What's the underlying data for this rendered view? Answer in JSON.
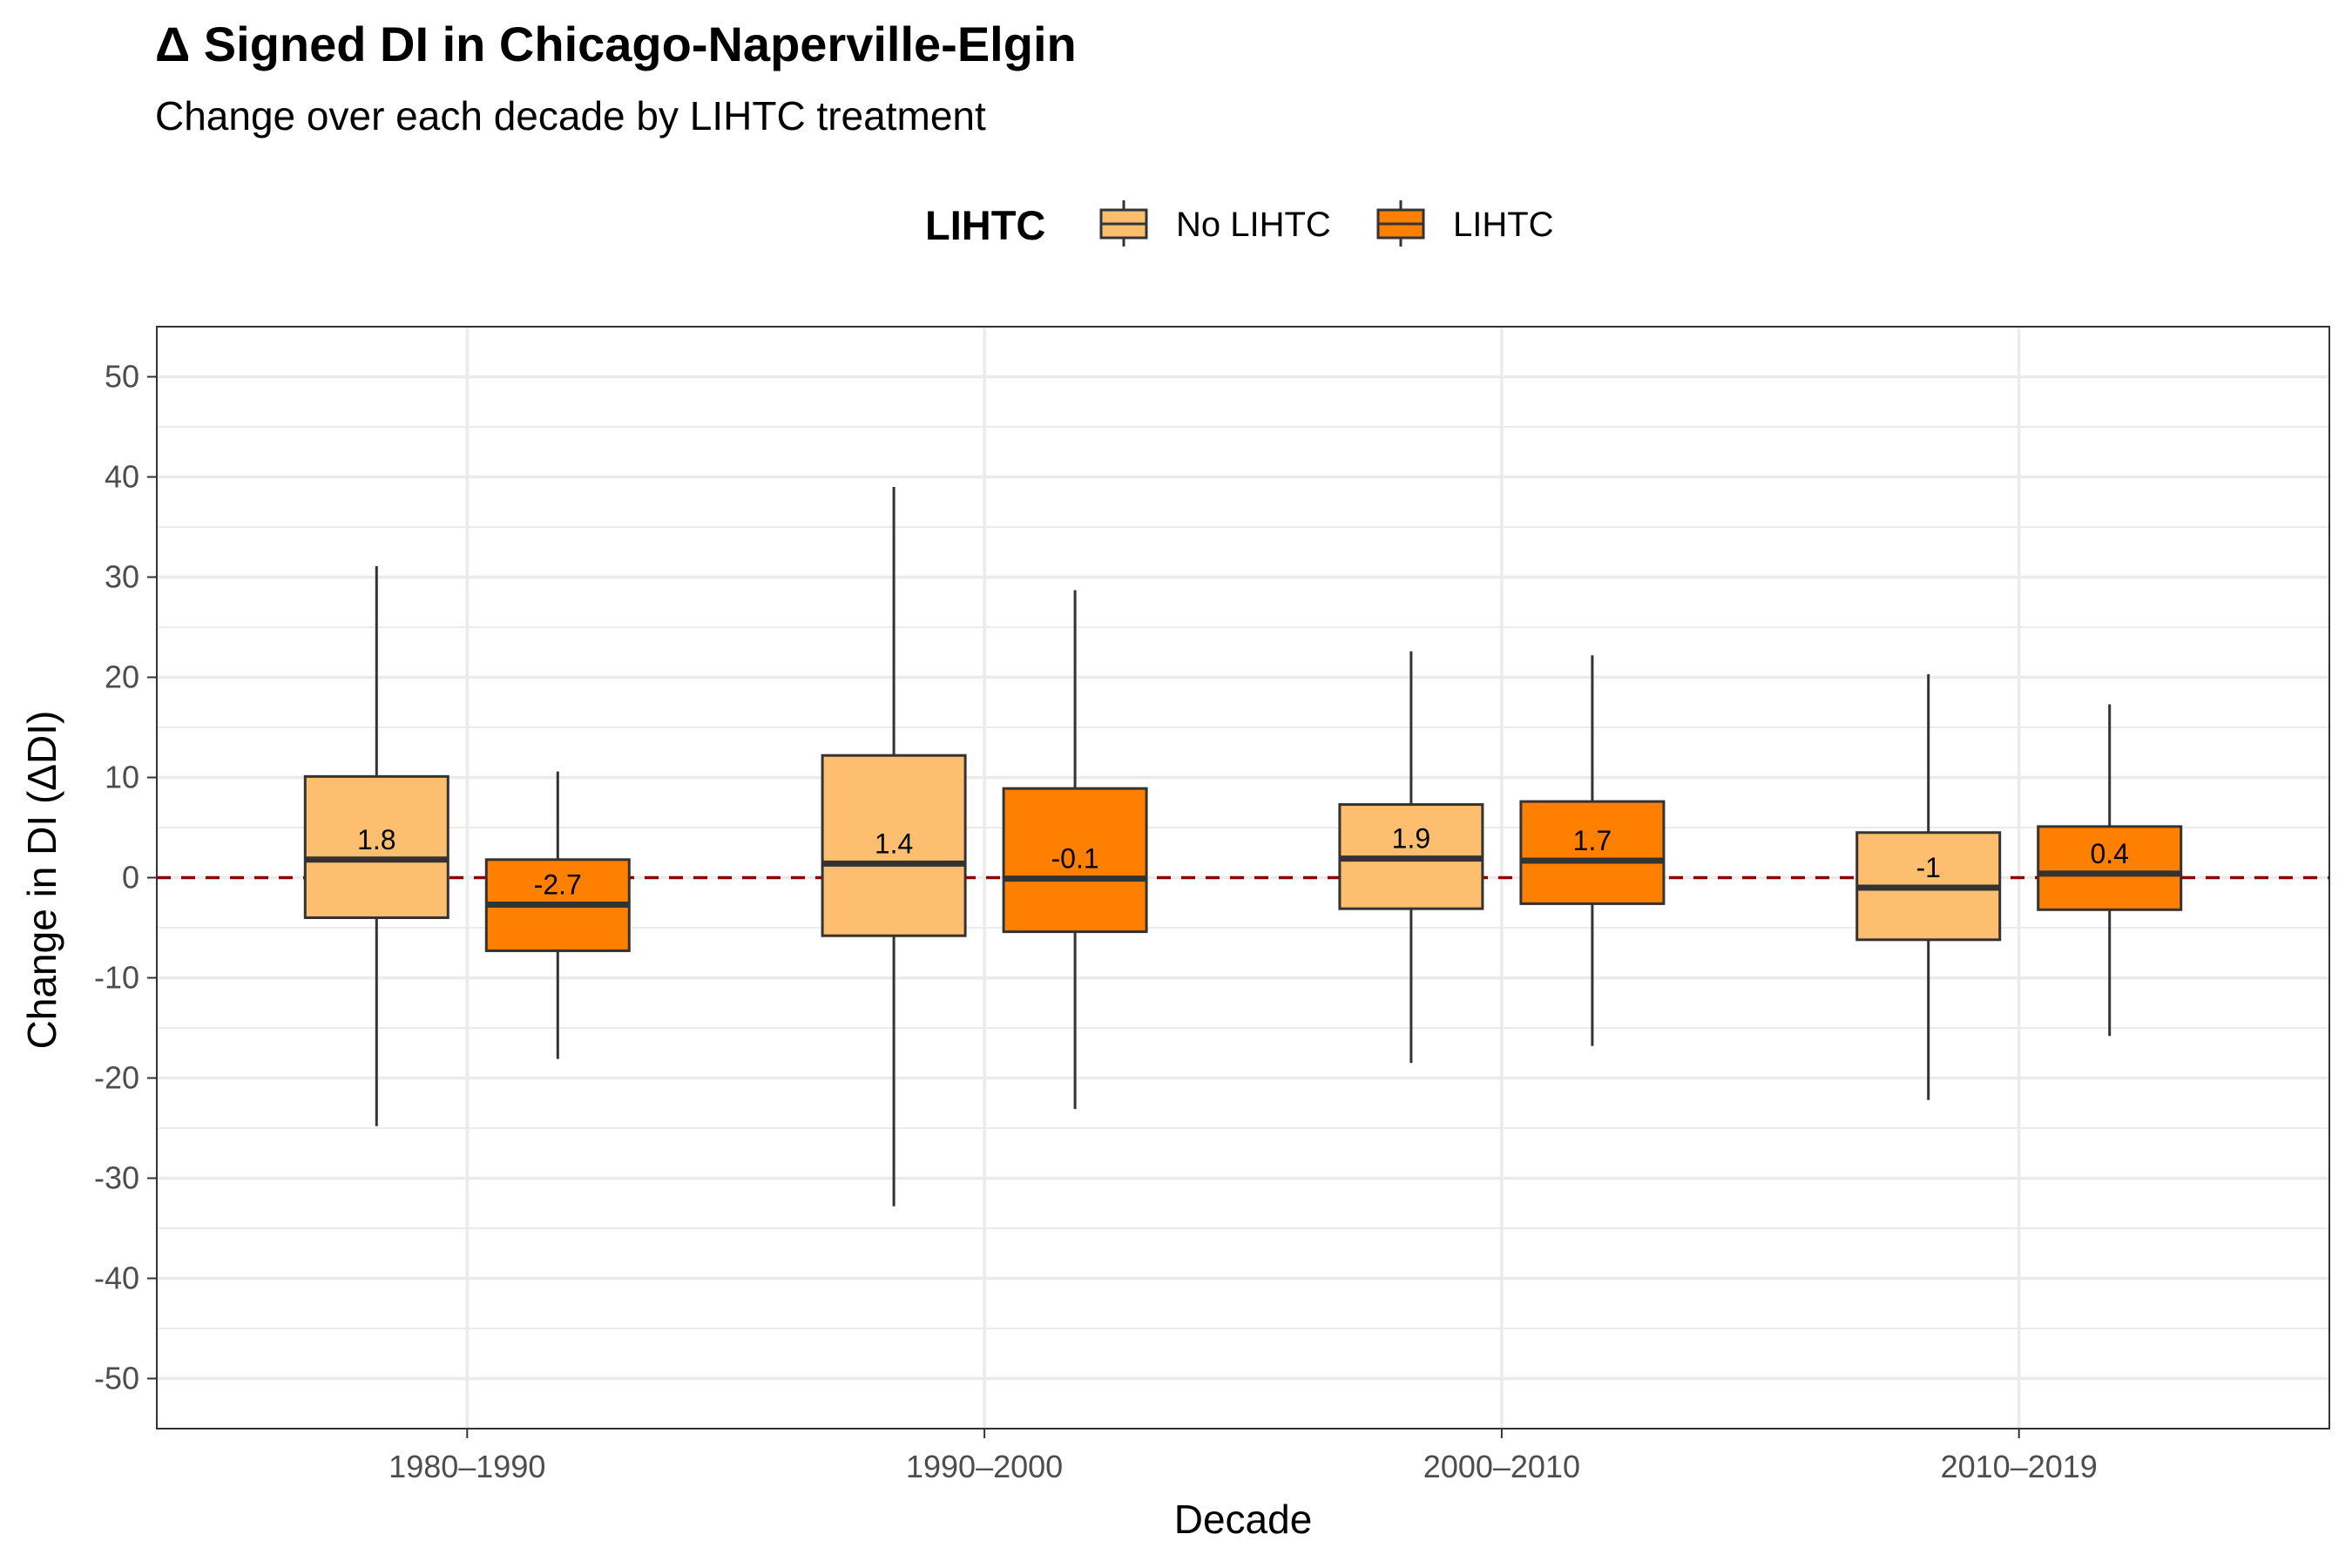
{
  "title": "Δ Signed DI in Chicago-Naperville-Elgin",
  "subtitle": "Change over each decade by LIHTC treatment",
  "legend": {
    "title": "LIHTC",
    "items": [
      {
        "label": "No LIHTC",
        "color": "#fdbf6f"
      },
      {
        "label": "LIHTC",
        "color": "#ff7f00"
      }
    ]
  },
  "colors": {
    "no_lihtc_fill": "#fdbf6f",
    "lihtc_fill": "#ff7f00",
    "box_stroke": "#333333",
    "reference_line": "#8b0000",
    "grid": "#ebebeb",
    "panel_border": "#333333"
  },
  "chart_data": {
    "type": "box",
    "title": "Δ Signed DI in Chicago-Naperville-Elgin",
    "subtitle": "Change over each decade by LIHTC treatment",
    "xlabel": "Decade",
    "ylabel": "Change in DI (ΔDI)",
    "categories": [
      "1980–1990",
      "1990–2000",
      "2000–2010",
      "2010–2019"
    ],
    "ylim": [
      -55,
      55
    ],
    "yticks": [
      -50,
      -40,
      -30,
      -20,
      -10,
      0,
      10,
      20,
      30,
      40,
      50
    ],
    "reference_line": {
      "y": 0,
      "style": "dashed"
    },
    "grid": true,
    "legend_position": "top",
    "series": [
      {
        "name": "No LIHTC",
        "boxes": [
          {
            "whisker_low": -24.8,
            "q1": -4.0,
            "median": 1.8,
            "q3": 10.1,
            "whisker_high": 31.1,
            "label": "1.8"
          },
          {
            "whisker_low": -32.8,
            "q1": -5.8,
            "median": 1.4,
            "q3": 12.2,
            "whisker_high": 39.0,
            "label": "1.4"
          },
          {
            "whisker_low": -18.5,
            "q1": -3.1,
            "median": 1.9,
            "q3": 7.3,
            "whisker_high": 22.6,
            "label": "1.9"
          },
          {
            "whisker_low": -22.2,
            "q1": -6.2,
            "median": -1.0,
            "q3": 4.5,
            "whisker_high": 20.3,
            "label": "-1"
          }
        ]
      },
      {
        "name": "LIHTC",
        "boxes": [
          {
            "whisker_low": -18.1,
            "q1": -7.3,
            "median": -2.7,
            "q3": 1.8,
            "whisker_high": 10.6,
            "label": "-2.7"
          },
          {
            "whisker_low": -23.1,
            "q1": -5.4,
            "median": -0.1,
            "q3": 8.9,
            "whisker_high": 28.7,
            "label": "-0.1"
          },
          {
            "whisker_low": -16.8,
            "q1": -2.6,
            "median": 1.7,
            "q3": 7.6,
            "whisker_high": 22.2,
            "label": "1.7"
          },
          {
            "whisker_low": -15.8,
            "q1": -3.2,
            "median": 0.4,
            "q3": 5.1,
            "whisker_high": 17.3,
            "label": "0.4"
          }
        ]
      }
    ]
  }
}
